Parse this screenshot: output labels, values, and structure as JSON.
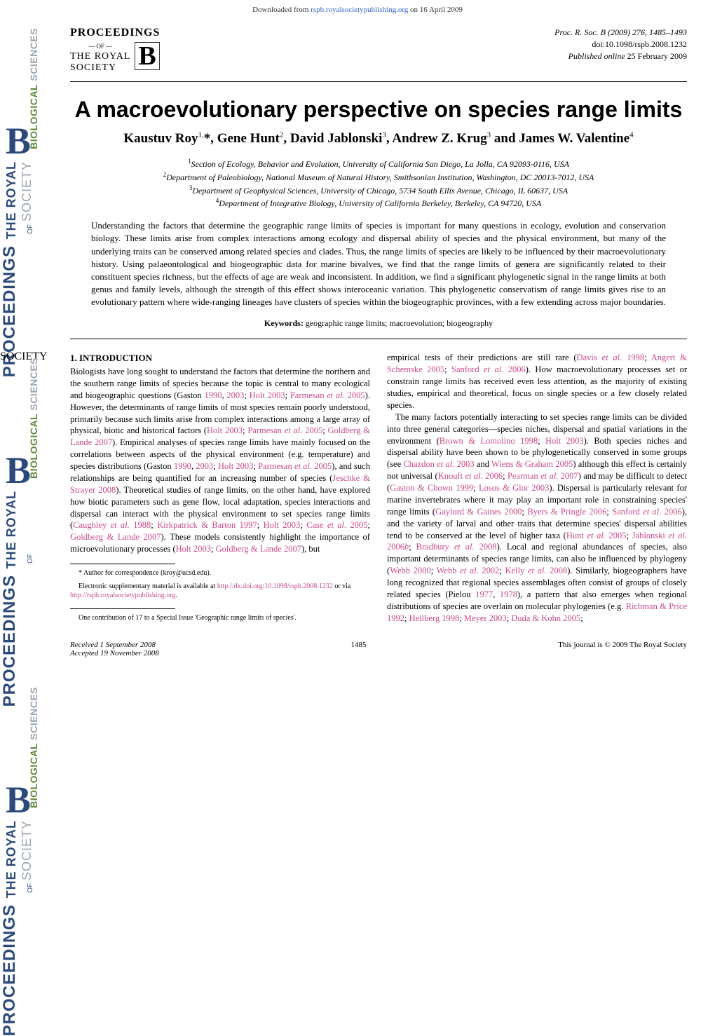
{
  "download_banner": {
    "prefix": "Downloaded from ",
    "link": "rspb.royalsocietypublishing.org",
    "suffix": " on 16 April 2009"
  },
  "spine": {
    "biological": "BIOLOGICAL",
    "sciences": "SCIENCES",
    "b": "B",
    "the_royal": "THE ROYAL",
    "society": "SOCIETY",
    "of": "OF",
    "proceedings": "PROCEEDINGS"
  },
  "logo": {
    "proceedings": "PROCEEDINGS",
    "of": "OF",
    "the_royal": "THE ROYAL",
    "society": "SOCIETY",
    "b": "B"
  },
  "header_meta": {
    "citation": "Proc. R. Soc. B (2009) 276, 1485–1493",
    "doi": "doi:10.1098/rspb.2008.1232",
    "published": "Published online 25 February 2009"
  },
  "title": "A macroevolutionary perspective on species range limits",
  "authors_html": "Kaustuv Roy<sup>1,</sup>*, Gene Hunt<sup>2</sup>, David Jablonski<sup>3</sup>, Andrew Z. Krug<sup>3</sup> and James W. Valentine<sup>4</sup>",
  "affiliations": [
    "<sup>1</sup>Section of Ecology, Behavior and Evolution, University of California San Diego, La Jolla, CA 92093-0116, USA",
    "<sup>2</sup>Department of Paleobiology, National Museum of Natural History, Smithsonian Institution, Washington, DC 20013-7012, USA",
    "<sup>3</sup>Department of Geophysical Sciences, University of Chicago, 5734 South Ellis Avenue, Chicago, IL 60637, USA",
    "<sup>4</sup>Department of Integrative Biology, University of California Berkeley, Berkeley, CA 94720, USA"
  ],
  "abstract": "Understanding the factors that determine the geographic range limits of species is important for many questions in ecology, evolution and conservation biology. These limits arise from complex interactions among ecology and dispersal ability of species and the physical environment, but many of the underlying traits can be conserved among related species and clades. Thus, the range limits of species are likely to be influenced by their macroevolutionary history. Using palaeontological and biogeographic data for marine bivalves, we find that the range limits of genera are significantly related to their constituent species richness, but the effects of age are weak and inconsistent. In addition, we find a significant phylogenetic signal in the range limits at both genus and family levels, although the strength of this effect shows interoceanic variation. This phylogenetic conservatism of range limits gives rise to an evolutionary pattern where wide-ranging lineages have clusters of species within the biogeographic provinces, with a few extending across major boundaries.",
  "keywords": {
    "label": "Keywords:",
    "text": "geographic range limits; macroevolution; biogeography"
  },
  "section_heading": "1. INTRODUCTION",
  "col1_p1": "Biologists have long sought to understand the factors that determine the northern and the southern range limits of species because the topic is central to many ecological and biogeographic questions (Gaston <span class=\"ref\">1990</span>, <span class=\"ref\">2003</span>; <span class=\"ref\">Holt 2003</span>; <span class=\"ref\">Parmesan <i>et al.</i> 2005</span>). However, the determinants of range limits of most species remain poorly understood, primarily because such limits arise from complex interactions among a large array of physical, biotic and historical factors (<span class=\"ref\">Holt 2003</span>; <span class=\"ref\">Parmesan <i>et al.</i> 2005</span>; <span class=\"ref\">Goldberg &amp; Lande 2007</span>). Empirical analyses of species range limits have mainly focused on the correlations between aspects of the physical environment (e.g. temperature) and species distributions (Gaston <span class=\"ref\">1990</span>, <span class=\"ref\">2003</span>; <span class=\"ref\">Holt 2003</span>; <span class=\"ref\">Parmesan <i>et al.</i> 2005</span>), and such relationships are being quantified for an increasing number of species (<span class=\"ref\">Jeschke &amp; Strayer 2008</span>). Theoretical studies of range limits, on the other hand, have explored how biotic parameters such as gene flow, local adaptation, species interactions and dispersal can interact with the physical environment to set species range limits (<span class=\"ref\">Caughley <i>et al.</i> 1988</span>; <span class=\"ref\">Kirkpatrick &amp; Barton 1997</span>; <span class=\"ref\">Holt 2003</span>; <span class=\"ref\">Case <i>et al.</i> 2005</span>; <span class=\"ref\">Goldberg &amp; Lande 2007</span>). These models consistently highlight the importance of microevolutionary processes (<span class=\"ref\">Holt 2003</span>; <span class=\"ref\">Goldberg &amp; Lande 2007</span>), but",
  "col2_p1": "empirical tests of their predictions are still rare (<span class=\"ref\">Davis <i>et al.</i> 1998</span>; <span class=\"ref\">Angert &amp; Schemske 2005</span>; <span class=\"ref\">Sanford <i>et al.</i> 2006</span>). How macroevolutionary processes set or constrain range limits has received even less attention, as the majority of existing studies, empirical and theoretical, focus on single species or a few closely related species.",
  "col2_p2": "The many factors potentially interacting to set species range limits can be divided into three general categories—species niches, dispersal and spatial variations in the environment (<span class=\"ref\">Brown &amp; Lomolino 1998</span>; <span class=\"ref\">Holt 2003</span>). Both species niches and dispersal ability have been shown to be phylogenetically conserved in some groups (see <span class=\"ref\">Chazdon <i>et al.</i> 2003</span> and <span class=\"ref\">Wiens &amp; Graham 2005</span>) although this effect is certainly not universal (<span class=\"ref\">Knouft <i>et al.</i> 2006</span>; <span class=\"ref\">Pearman <i>et al.</i> 2007</span>) and may be difficult to detect (<span class=\"ref\">Gaston &amp; Chown 1999</span>; <span class=\"ref\">Losos &amp; Glor 2003</span>). Dispersal is particularly relevant for marine invertebrates where it may play an important role in constraining species' range limits (<span class=\"ref\">Gaylord &amp; Gaines 2000</span>; <span class=\"ref\">Byers &amp; Pringle 2006</span>; <span class=\"ref\">Sanford <i>et al.</i> 2006</span>), and the variety of larval and other traits that determine species' dispersal abilities tend to be conserved at the level of higher taxa (<span class=\"ref\">Hunt <i>et al.</i> 2005</span>; <span class=\"ref\">Jablonski <i>et al.</i> 2006<i>b</i></span>; <span class=\"ref\">Bradbury <i>et al.</i> 2008</span>). Local and regional abundances of species, also important determinants of species range limits, can also be influenced by phylogeny (<span class=\"ref\">Webb 2000</span>; <span class=\"ref\">Webb <i>et al.</i> 2002</span>; <span class=\"ref\">Kelly <i>et al.</i> 2008</span>). Similarly, biogeographers have long recognized that regional species assemblages often consist of groups of closely related species (Pielou <span class=\"ref\">1977</span>, <span class=\"ref\">1978</span>), a pattern that also emerges when regional distributions of species are overlain on molecular phylogenies (e.g. <span class=\"ref\">Richman &amp; Price 1992</span>; <span class=\"ref\">Hellberg 1998</span>; <span class=\"ref\">Meyer 2003</span>; <span class=\"ref\">Duda &amp; Kohn 2005</span>;",
  "footnotes": {
    "author": "* Author for correspondence (kroy@ucsd.edu).",
    "supp": "Electronic supplementary material is available at <a href=\"#\">http://dx.doi.org/10.1098/rspb.2008.1232</a> or via <a href=\"#\">http://rspb.royalsocietypublishing.org</a>.",
    "contrib": "One contribution of 17 to a Special Issue 'Geographic range limits of species'."
  },
  "page_footer": {
    "received": "Received 1 September 2008",
    "accepted": "Accepted 19 November 2008",
    "page": "1485",
    "copyright": "This journal is © 2009 The Royal Society"
  },
  "colors": {
    "ref_color": "#c94a8a",
    "spine_blue": "#2b4a7a",
    "spine_green": "#5b8a3c",
    "spine_gray": "#9aa6b2"
  }
}
